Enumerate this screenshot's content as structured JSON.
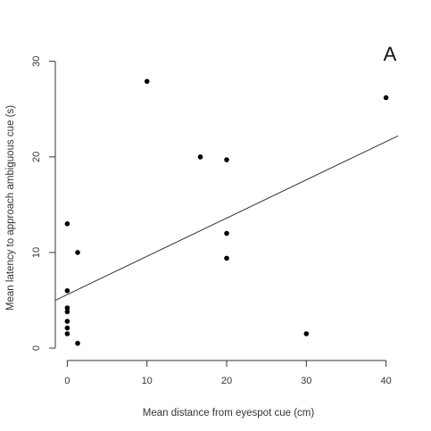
{
  "chart_data": {
    "type": "scatter",
    "panel_label": "A",
    "xlabel": "Mean distance from eyespot cue (cm)",
    "ylabel": "Mean latency to approach ambiguous cue (s)",
    "xlim": [
      -1.5,
      41.5
    ],
    "ylim": [
      -1.3,
      31
    ],
    "x_ticks": [
      0,
      10,
      20,
      30,
      40
    ],
    "y_ticks": [
      0,
      10,
      20,
      30
    ],
    "grid": false,
    "legend": "none",
    "points": [
      {
        "x": 0,
        "y": 13
      },
      {
        "x": 0,
        "y": 6
      },
      {
        "x": 0,
        "y": 4.2
      },
      {
        "x": 0,
        "y": 3.8
      },
      {
        "x": 0,
        "y": 2.8
      },
      {
        "x": 0,
        "y": 2.1
      },
      {
        "x": 0,
        "y": 1.5
      },
      {
        "x": 1.3,
        "y": 10
      },
      {
        "x": 1.3,
        "y": 0.5
      },
      {
        "x": 10,
        "y": 27.9
      },
      {
        "x": 16.7,
        "y": 20
      },
      {
        "x": 20,
        "y": 19.7
      },
      {
        "x": 20,
        "y": 12
      },
      {
        "x": 20,
        "y": 9.4
      },
      {
        "x": 30,
        "y": 1.5
      },
      {
        "x": 40,
        "y": 26.2
      }
    ],
    "trend_line": {
      "x": [
        -1.5,
        41.5
      ],
      "y": [
        5.0,
        22.2
      ]
    },
    "colors": {
      "points": "#000000",
      "line": "#333333",
      "axis": "#333333"
    }
  }
}
